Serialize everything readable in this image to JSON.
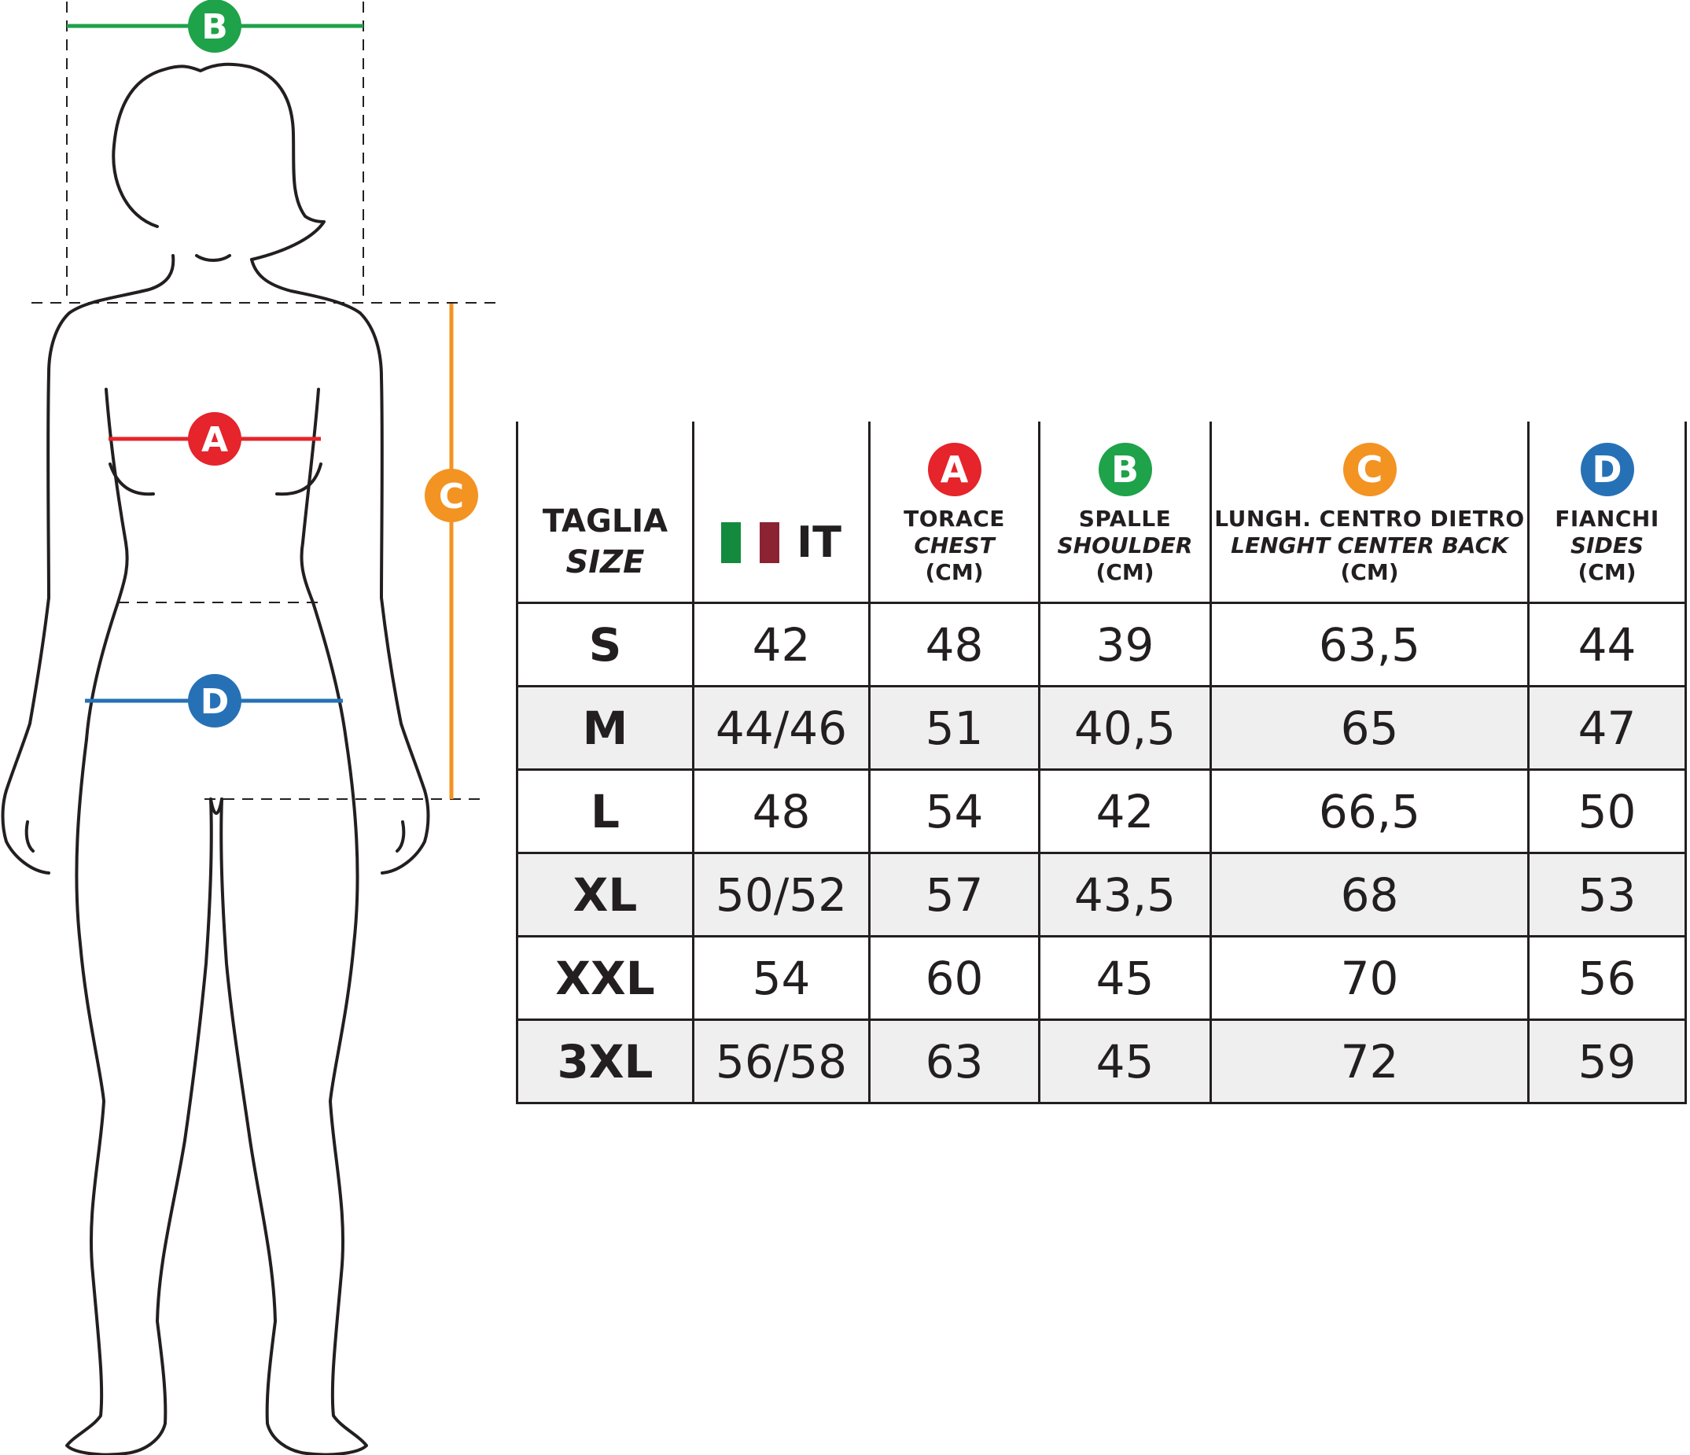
{
  "colors": {
    "A": "#e5242b",
    "B": "#1ea24a",
    "C": "#f39322",
    "D": "#2671b6",
    "flag_green": "#138a3e",
    "flag_white": "#ffffff",
    "flag_red": "#8b2332",
    "outline": "#231f20",
    "stripe": "#efefef"
  },
  "figure": {
    "label_a": "A",
    "label_b": "B",
    "label_c": "C",
    "label_d": "D"
  },
  "table": {
    "taglia": {
      "main": "TAGLIA",
      "sub": "SIZE"
    },
    "it": {
      "label": "IT",
      "icon": "italian-flag-icon"
    },
    "columns": [
      {
        "badge": "A",
        "main": "TORACE",
        "sub": "CHEST",
        "unit": "(CM)"
      },
      {
        "badge": "B",
        "main": "SPALLE",
        "sub": "SHOULDER",
        "unit": "(CM)"
      },
      {
        "badge": "C",
        "main": "LUNGH. CENTRO DIETRO",
        "sub": "LENGHT CENTER BACK",
        "unit": "(CM)"
      },
      {
        "badge": "D",
        "main": "FIANCHI",
        "sub": "SIDES",
        "unit": "(CM)"
      }
    ],
    "rows": [
      {
        "size": "S",
        "it": "42",
        "chest": "48",
        "shoulder": "39",
        "length": "63,5",
        "sides": "44"
      },
      {
        "size": "M",
        "it": "44/46",
        "chest": "51",
        "shoulder": "40,5",
        "length": "65",
        "sides": "47"
      },
      {
        "size": "L",
        "it": "48",
        "chest": "54",
        "shoulder": "42",
        "length": "66,5",
        "sides": "50"
      },
      {
        "size": "XL",
        "it": "50/52",
        "chest": "57",
        "shoulder": "43,5",
        "length": "68",
        "sides": "53"
      },
      {
        "size": "XXL",
        "it": "54",
        "chest": "60",
        "shoulder": "45",
        "length": "70",
        "sides": "56"
      },
      {
        "size": "3XL",
        "it": "56/58",
        "chest": "63",
        "shoulder": "45",
        "length": "72",
        "sides": "59"
      }
    ]
  }
}
